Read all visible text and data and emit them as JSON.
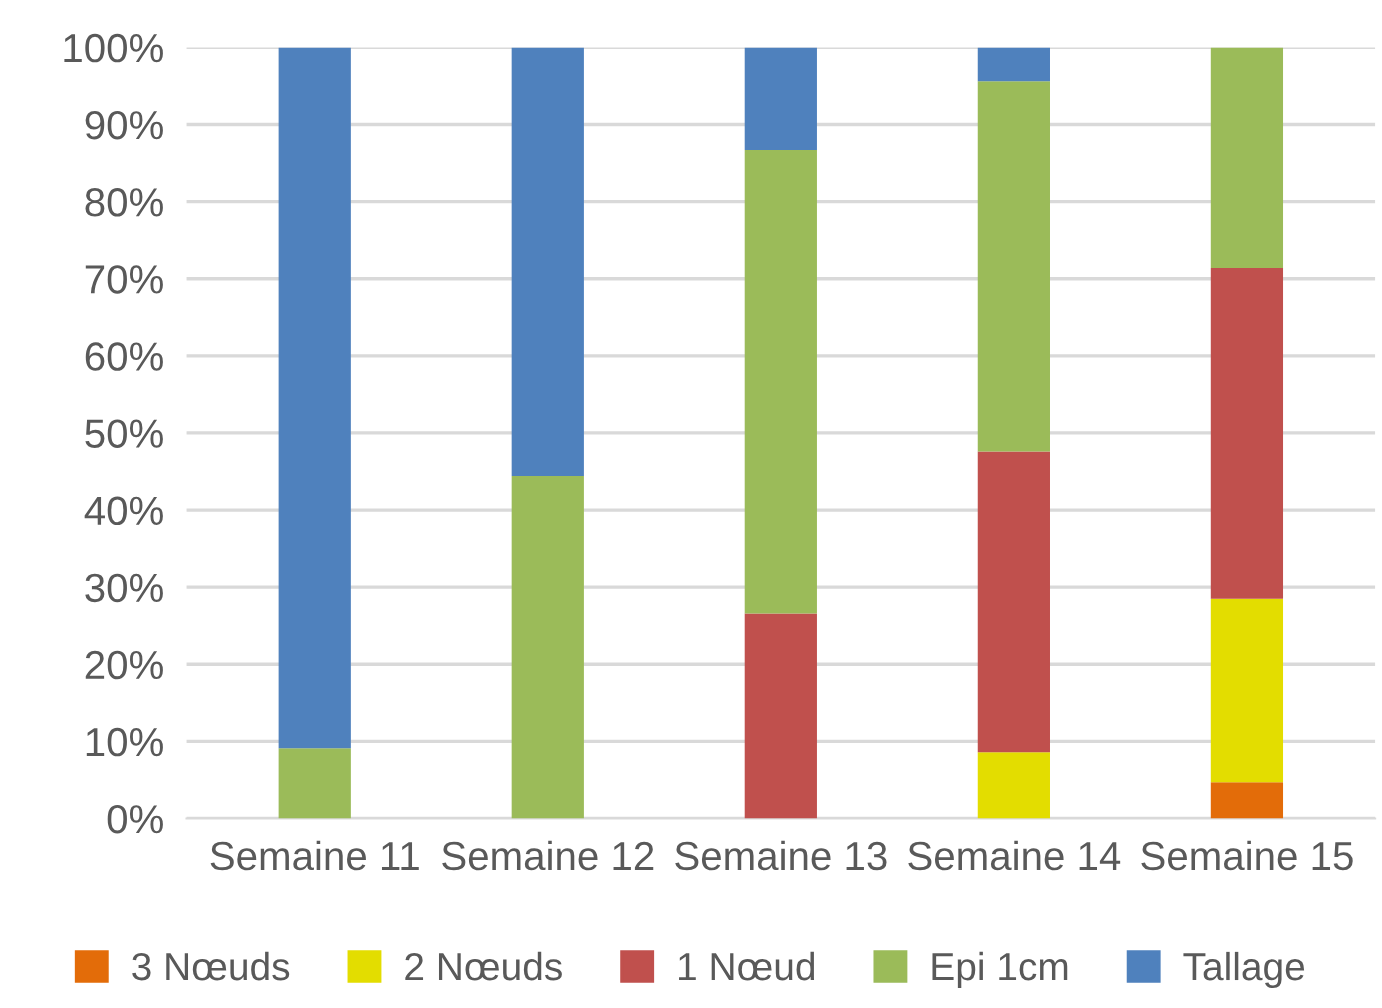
{
  "chart_data": {
    "type": "bar",
    "stacked": true,
    "categories": [
      "Semaine 11",
      "Semaine 12",
      "Semaine 13",
      "Semaine 14",
      "Semaine 15"
    ],
    "series": [
      {
        "name": "3 Nœuds",
        "color": "#e36c09",
        "values": [
          0,
          0,
          0,
          0,
          4.7
        ]
      },
      {
        "name": "2 Nœuds",
        "color": "#e3dd00",
        "values": [
          0,
          0,
          0,
          8.6,
          23.8
        ]
      },
      {
        "name": "1 Nœud",
        "color": "#c0504d",
        "values": [
          0,
          0,
          26.6,
          39.0,
          42.9
        ]
      },
      {
        "name": "Epi 1cm",
        "color": "#9bbb59",
        "values": [
          9.1,
          44.4,
          60.1,
          48.0,
          28.6
        ]
      },
      {
        "name": "Tallage",
        "color": "#4f81bd",
        "values": [
          90.9,
          55.6,
          13.3,
          4.4,
          0
        ]
      }
    ],
    "ylim": [
      0,
      100
    ],
    "yticks": [
      {
        "value": 0,
        "label": "0%"
      },
      {
        "value": 10,
        "label": "10%"
      },
      {
        "value": 20,
        "label": "20%"
      },
      {
        "value": 30,
        "label": "30%"
      },
      {
        "value": 40,
        "label": "40%"
      },
      {
        "value": 50,
        "label": "50%"
      },
      {
        "value": 60,
        "label": "60%"
      },
      {
        "value": 70,
        "label": "70%"
      },
      {
        "value": 80,
        "label": "80%"
      },
      {
        "value": 90,
        "label": "90%"
      },
      {
        "value": 100,
        "label": "100%"
      }
    ],
    "grid": "y",
    "legend": "bottom"
  }
}
